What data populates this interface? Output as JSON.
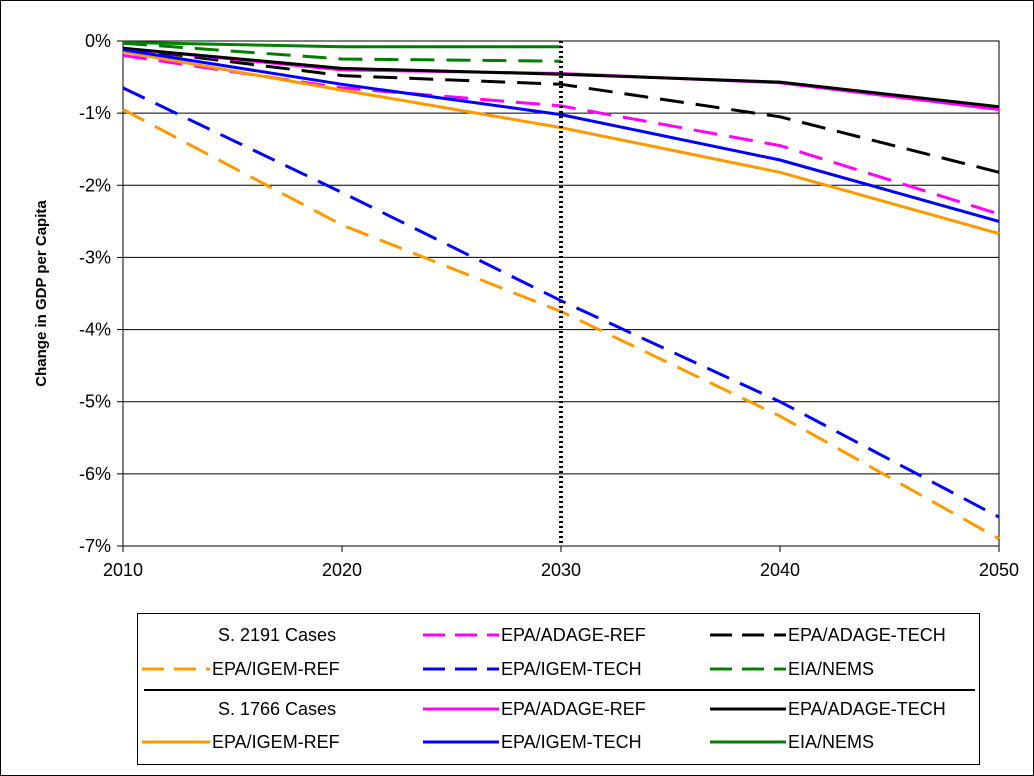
{
  "chart_data": {
    "type": "line",
    "xlabel": "",
    "ylabel": "Change in GDP per Capita",
    "x": [
      2010,
      2020,
      2030,
      2040,
      2050
    ],
    "x_ticks": [
      "2010",
      "2020",
      "2030",
      "2040",
      "2050"
    ],
    "y_ticks": [
      "0%",
      "-1%",
      "-2%",
      "-3%",
      "-4%",
      "-5%",
      "-6%",
      "-7%"
    ],
    "ylim": [
      -7,
      0
    ],
    "xlim": [
      2010,
      2050
    ],
    "grid": "horizontal",
    "reference_line": {
      "x": 2030,
      "style": "dotted",
      "color": "#000000"
    },
    "series": [
      {
        "name": "EPA/ADAGE-REF",
        "group": "S. 2191 Cases",
        "dash": true,
        "color": "#FF00FF",
        "x": [
          2010,
          2020,
          2030,
          2040,
          2050
        ],
        "values": [
          -0.2,
          -0.65,
          -0.9,
          -1.45,
          -2.4
        ]
      },
      {
        "name": "EPA/ADAGE-TECH",
        "group": "S. 2191 Cases",
        "dash": true,
        "color": "#000000",
        "x": [
          2010,
          2020,
          2030,
          2040,
          2050
        ],
        "values": [
          -0.1,
          -0.48,
          -0.6,
          -1.05,
          -1.82
        ]
      },
      {
        "name": "EPA/IGEM-REF",
        "group": "S. 2191 Cases",
        "dash": true,
        "color": "#FF9900",
        "x": [
          2010,
          2020,
          2030,
          2040,
          2050
        ],
        "values": [
          -0.95,
          -2.55,
          -3.75,
          -5.2,
          -6.9
        ]
      },
      {
        "name": "EPA/IGEM-TECH",
        "group": "S. 2191 Cases",
        "dash": true,
        "color": "#0000FF",
        "x": [
          2010,
          2020,
          2030,
          2040,
          2050
        ],
        "values": [
          -0.65,
          -2.1,
          -3.6,
          -5.0,
          -6.6
        ]
      },
      {
        "name": "EIA/NEMS",
        "group": "S. 2191 Cases",
        "dash": true,
        "color": "#008000",
        "x": [
          2010,
          2020,
          2030
        ],
        "values": [
          -0.03,
          -0.25,
          -0.28
        ]
      },
      {
        "name": "EPA/ADAGE-REF",
        "group": "S. 1766 Cases",
        "dash": false,
        "color": "#FF00FF",
        "x": [
          2010,
          2020,
          2030,
          2040,
          2050
        ],
        "values": [
          -0.1,
          -0.4,
          -0.45,
          -0.58,
          -0.95
        ]
      },
      {
        "name": "EPA/ADAGE-TECH",
        "group": "S. 1766 Cases",
        "dash": false,
        "color": "#000000",
        "x": [
          2010,
          2020,
          2030,
          2040,
          2050
        ],
        "values": [
          -0.1,
          -0.38,
          -0.46,
          -0.57,
          -0.91
        ]
      },
      {
        "name": "EPA/IGEM-REF",
        "group": "S. 1766 Cases",
        "dash": false,
        "color": "#FF9900",
        "x": [
          2010,
          2020,
          2030,
          2040,
          2050
        ],
        "values": [
          -0.15,
          -0.68,
          -1.2,
          -1.82,
          -2.67
        ]
      },
      {
        "name": "EPA/IGEM-TECH",
        "group": "S. 1766 Cases",
        "dash": false,
        "color": "#0000FF",
        "x": [
          2010,
          2020,
          2030,
          2040,
          2050
        ],
        "values": [
          -0.12,
          -0.6,
          -1.02,
          -1.65,
          -2.5
        ]
      },
      {
        "name": "EIA/NEMS",
        "group": "S. 1766 Cases",
        "dash": false,
        "color": "#008000",
        "x": [
          2010,
          2020,
          2030
        ],
        "values": [
          -0.02,
          -0.08,
          -0.08
        ]
      }
    ],
    "legend": {
      "placement": "bottom",
      "groups": [
        {
          "title": "S. 2191 Cases",
          "dashed": true,
          "items": [
            "EPA/ADAGE-REF",
            "EPA/ADAGE-TECH",
            "EPA/IGEM-REF",
            "EPA/IGEM-TECH",
            "EIA/NEMS"
          ]
        },
        {
          "title": "S. 1766 Cases",
          "dashed": false,
          "items": [
            "EPA/ADAGE-REF",
            "EPA/ADAGE-TECH",
            "EPA/IGEM-REF",
            "EPA/IGEM-TECH",
            "EIA/NEMS"
          ]
        }
      ]
    }
  },
  "legend": {
    "group1_title": "S. 2191 Cases",
    "group2_title": "S. 1766 Cases",
    "adage_ref": "EPA/ADAGE-REF",
    "adage_tech": "EPA/ADAGE-TECH",
    "igem_ref": "EPA/IGEM-REF",
    "igem_tech": "EPA/IGEM-TECH",
    "nems": "EIA/NEMS"
  },
  "colors": {
    "adage_ref": "#FF00FF",
    "adage_tech": "#000000",
    "igem_ref": "#FF9900",
    "igem_tech": "#0000FF",
    "nems": "#008000"
  }
}
